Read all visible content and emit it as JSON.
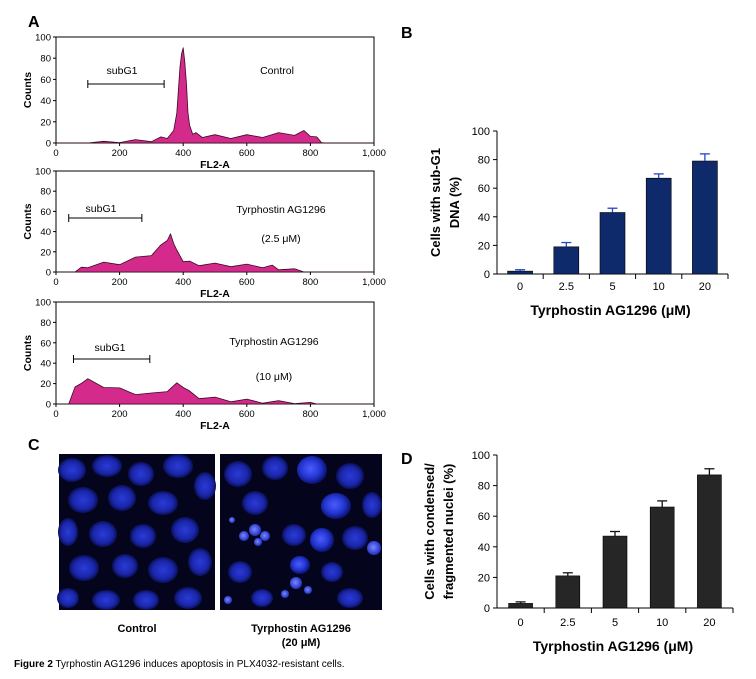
{
  "panel_labels": {
    "a": "A",
    "b": "B",
    "c": "C",
    "d": "D"
  },
  "caption": {
    "label": "Figure 2",
    "text": " Tyrphostin AG1296 induces apoptosis in PLX4032-resistant cells."
  },
  "micrographs": {
    "control_label": "Control",
    "treated_label_line1": "Tyrphostin AG1296",
    "treated_label_line2": "(20 μM)"
  },
  "chart_data": [
    {
      "id": "histogram-control",
      "type": "area",
      "title": "Control",
      "annotation": "subG1",
      "xlabel": "FL2-A",
      "ylabel": "Counts",
      "xlim": [
        0,
        1000
      ],
      "ylim": [
        0,
        100
      ],
      "xticks": [
        "0",
        "200",
        "400",
        "600",
        "800",
        "1,000"
      ],
      "yticks": [
        "0",
        "20",
        "40",
        "60",
        "80",
        "100"
      ],
      "subG1_range": [
        100,
        340
      ],
      "x": [
        0,
        100,
        150,
        200,
        250,
        300,
        330,
        350,
        370,
        380,
        390,
        395,
        400,
        405,
        410,
        415,
        420,
        430,
        440,
        460,
        500,
        550,
        600,
        650,
        700,
        750,
        780,
        800,
        820,
        835,
        850,
        1000
      ],
      "y": [
        0,
        0,
        1,
        1,
        2,
        3,
        4,
        6,
        10,
        30,
        70,
        86,
        88,
        78,
        55,
        30,
        15,
        10,
        8,
        7,
        6,
        6,
        6,
        7,
        8,
        9,
        10,
        8,
        4,
        1,
        0,
        0
      ],
      "color": "#d42a8c"
    },
    {
      "id": "histogram-2-5",
      "type": "area",
      "title": "Tyrphostin AG1296",
      "subtitle": "(2.5 μM)",
      "annotation": "subG1",
      "xlabel": "FL2-A",
      "ylabel": "Counts",
      "xlim": [
        0,
        1000
      ],
      "ylim": [
        0,
        100
      ],
      "xticks": [
        "0",
        "200",
        "400",
        "600",
        "800",
        "1,000"
      ],
      "yticks": [
        "0",
        "20",
        "40",
        "60",
        "80",
        "100"
      ],
      "subG1_range": [
        40,
        270
      ],
      "x": [
        0,
        60,
        80,
        100,
        150,
        200,
        250,
        300,
        330,
        350,
        360,
        370,
        380,
        400,
        420,
        450,
        500,
        550,
        600,
        650,
        680,
        700,
        750,
        780,
        800,
        1000
      ],
      "y": [
        0,
        0,
        3,
        6,
        8,
        9,
        13,
        18,
        25,
        33,
        36,
        30,
        20,
        12,
        9,
        8,
        7,
        7,
        6,
        6,
        5,
        4,
        2,
        0,
        0,
        0
      ],
      "color": "#d42a8c"
    },
    {
      "id": "histogram-10",
      "type": "area",
      "title": "Tyrphostin AG1296",
      "subtitle": "(10 μM)",
      "annotation": "subG1",
      "xlabel": "FL2-A",
      "ylabel": "Counts",
      "xlim": [
        0,
        1000
      ],
      "ylim": [
        0,
        100
      ],
      "xticks": [
        "0",
        "200",
        "400",
        "600",
        "800",
        "1,000"
      ],
      "yticks": [
        "0",
        "20",
        "40",
        "60",
        "80",
        "100"
      ],
      "subG1_range": [
        55,
        295
      ],
      "x": [
        0,
        40,
        60,
        80,
        100,
        150,
        200,
        250,
        300,
        350,
        380,
        400,
        420,
        450,
        500,
        550,
        600,
        650,
        700,
        750,
        800,
        820,
        1000
      ],
      "y": [
        0,
        0,
        15,
        22,
        23,
        18,
        14,
        11,
        9,
        14,
        19,
        18,
        11,
        7,
        5,
        4,
        3,
        2,
        2,
        1,
        1,
        0,
        0
      ],
      "color": "#d42a8c"
    },
    {
      "id": "bar-subg1",
      "type": "bar",
      "categories": [
        "0",
        "2.5",
        "5",
        "10",
        "20"
      ],
      "values": [
        2,
        19,
        43,
        67,
        79
      ],
      "errors": [
        1,
        3,
        3,
        3,
        5
      ],
      "xlabel": "Tyrphostin AG1296 (μM)",
      "ylabel_line1": "Cells with sub-G1",
      "ylabel_line2": "DNA (%)",
      "ylim": [
        0,
        100
      ],
      "yticks": [
        "0",
        "20",
        "40",
        "60",
        "80",
        "100"
      ],
      "color": "#0f2a6b"
    },
    {
      "id": "bar-nuclei",
      "type": "bar",
      "categories": [
        "0",
        "2.5",
        "5",
        "10",
        "20"
      ],
      "values": [
        3,
        21,
        47,
        66,
        87
      ],
      "errors": [
        1,
        2,
        3,
        4,
        4
      ],
      "xlabel": "Tyrphostin AG1296 (μM)",
      "ylabel_line1": "Cells with condensed/",
      "ylabel_line2": "fragmented nuclei (%)",
      "ylim": [
        0,
        100
      ],
      "yticks": [
        "0",
        "20",
        "40",
        "60",
        "80",
        "100"
      ],
      "color": "#262626"
    }
  ]
}
